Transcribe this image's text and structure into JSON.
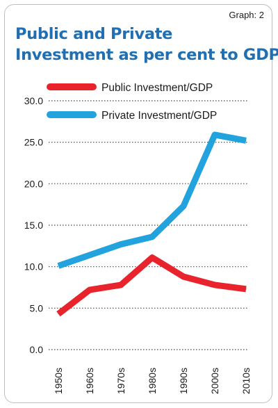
{
  "graph_label": "Graph: 2",
  "chart_data": {
    "type": "line",
    "title_lines": [
      "Public and Private",
      "Investment as per cent to GDP"
    ],
    "categories": [
      "1950s",
      "1960s",
      "1970s",
      "1980s",
      "1990s",
      "2000s",
      "2010s"
    ],
    "y_ticks": [
      "0.0",
      "5.0",
      "10.0",
      "15.0",
      "20.0",
      "25.0",
      "30.0"
    ],
    "ylim": [
      0,
      30
    ],
    "grid": "horizontal-dotted",
    "legend_placement": "top-left",
    "series": [
      {
        "name": "Public Investment/GDP",
        "color": "#e8232b",
        "values": [
          4.3,
          7.2,
          7.8,
          11.1,
          8.8,
          7.8,
          7.3
        ]
      },
      {
        "name": "Private Investment/GDP",
        "color": "#22a3dd",
        "values": [
          10.1,
          11.4,
          12.7,
          13.6,
          17.3,
          25.9,
          25.2
        ]
      }
    ]
  }
}
